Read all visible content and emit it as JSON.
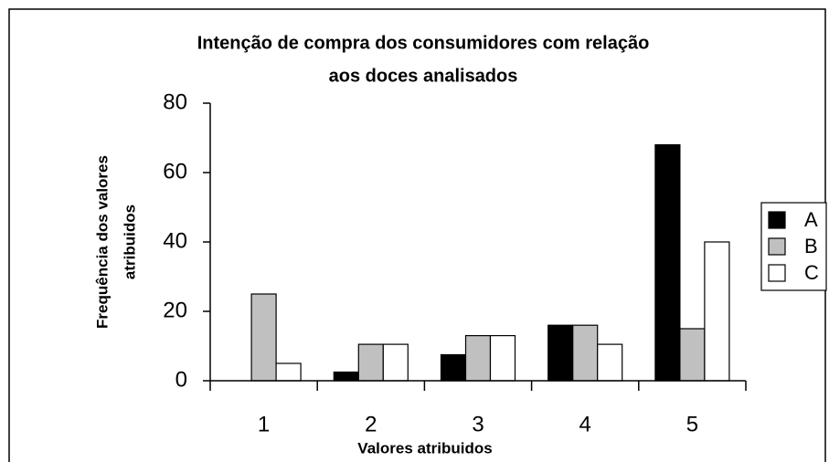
{
  "chart_data": {
    "type": "bar",
    "title": [
      "Intenção de compra dos consumidores com relação",
      "aos doces analisados"
    ],
    "x_label": "Valores atribuidos",
    "y_label": [
      "Frequência dos valores",
      "atribuidos"
    ],
    "categories": [
      "1",
      "2",
      "3",
      "4",
      "5"
    ],
    "series": [
      {
        "name": "A",
        "color": "#000000",
        "values": [
          0,
          2.5,
          7.5,
          16,
          68
        ]
      },
      {
        "name": "B",
        "color": "#c0c0c0",
        "values": [
          25,
          10.5,
          13,
          16,
          15
        ]
      },
      {
        "name": "C",
        "color": "#ffffff",
        "values": [
          5,
          10.5,
          13,
          10.5,
          40
        ]
      }
    ],
    "ylim": [
      0,
      80
    ],
    "yticks": [
      0,
      20,
      40,
      60,
      80
    ],
    "grid": false,
    "legend": "right"
  }
}
